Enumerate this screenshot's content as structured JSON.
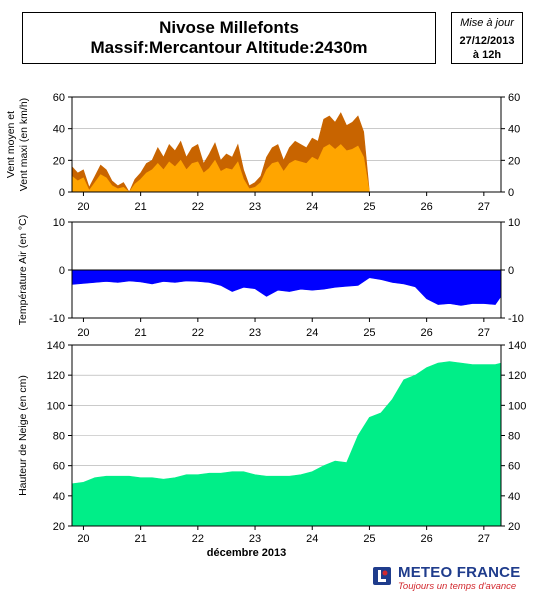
{
  "header": {
    "title_line1": "Nivose Millefonts",
    "title_line2": "Massif:Mercantour Altitude:2430m"
  },
  "update": {
    "label": "Mise à jour",
    "date": "27/12/2013",
    "time": "à 12h"
  },
  "footer": {
    "brand": "METEO FRANCE",
    "tagline": "Toujours un temps d'avance",
    "colors": {
      "brand_blue": "#1f3c8c",
      "brand_red": "#d2282e"
    }
  },
  "chart_data": [
    {
      "type": "area",
      "ylabel": "Vent moyen et Vent maxi (en km/h)",
      "ylim": [
        0,
        60
      ],
      "yticks": [
        0,
        20,
        40,
        60
      ],
      "grid": true,
      "x_ticks": [
        20,
        21,
        22,
        23,
        24,
        25,
        26,
        27
      ],
      "xlim": [
        19.8,
        27.3
      ],
      "series": [
        {
          "role": "max",
          "color": "#c86400",
          "x": [
            19.8,
            19.9,
            20.0,
            20.1,
            20.2,
            20.3,
            20.4,
            20.5,
            20.6,
            20.7,
            20.8,
            20.9,
            21.0,
            21.1,
            21.2,
            21.3,
            21.4,
            21.5,
            21.6,
            21.7,
            21.8,
            21.9,
            22.0,
            22.1,
            22.2,
            22.3,
            22.4,
            22.5,
            22.6,
            22.7,
            22.8,
            22.9,
            23.0,
            23.1,
            23.2,
            23.3,
            23.4,
            23.5,
            23.6,
            23.7,
            23.8,
            23.9,
            24.0,
            24.1,
            24.2,
            24.3,
            24.4,
            24.5,
            24.6,
            24.7,
            24.8,
            24.9,
            25.0
          ],
          "y": [
            16,
            12,
            14,
            3,
            10,
            17,
            14,
            7,
            4,
            6,
            0,
            8,
            12,
            18,
            20,
            28,
            22,
            30,
            26,
            32,
            22,
            28,
            30,
            18,
            24,
            31,
            20,
            24,
            22,
            30,
            14,
            4,
            6,
            10,
            22,
            28,
            30,
            20,
            28,
            32,
            30,
            28,
            34,
            32,
            46,
            48,
            44,
            50,
            42,
            44,
            48,
            38,
            0
          ]
        },
        {
          "role": "mean",
          "color": "#ffa500",
          "x": [
            19.8,
            19.9,
            20.0,
            20.1,
            20.2,
            20.3,
            20.4,
            20.5,
            20.6,
            20.7,
            20.8,
            20.9,
            21.0,
            21.1,
            21.2,
            21.3,
            21.4,
            21.5,
            21.6,
            21.7,
            21.8,
            21.9,
            22.0,
            22.1,
            22.2,
            22.3,
            22.4,
            22.5,
            22.6,
            22.7,
            22.8,
            22.9,
            23.0,
            23.1,
            23.2,
            23.3,
            23.4,
            23.5,
            23.6,
            23.7,
            23.8,
            23.9,
            24.0,
            24.1,
            24.2,
            24.3,
            24.4,
            24.5,
            24.6,
            24.7,
            24.8,
            24.9,
            25.0
          ],
          "y": [
            10,
            7,
            9,
            1,
            6,
            11,
            9,
            4,
            2,
            3,
            0,
            5,
            8,
            12,
            14,
            18,
            14,
            19,
            16,
            20,
            14,
            18,
            19,
            12,
            15,
            20,
            13,
            15,
            14,
            19,
            8,
            2,
            3,
            6,
            14,
            18,
            19,
            13,
            18,
            20,
            19,
            18,
            22,
            20,
            28,
            30,
            27,
            30,
            26,
            27,
            29,
            22,
            0
          ]
        }
      ]
    },
    {
      "type": "area",
      "ylabel": "Température Air (en °C)",
      "ylim": [
        -10,
        10
      ],
      "yticks": [
        -10,
        0,
        10
      ],
      "grid": true,
      "x_ticks": [
        20,
        21,
        22,
        23,
        24,
        25,
        26,
        27
      ],
      "xlim": [
        19.8,
        27.3
      ],
      "series": [
        {
          "role": "temperature",
          "color": "#0000ff",
          "x": [
            19.8,
            20.0,
            20.2,
            20.4,
            20.6,
            20.8,
            21.0,
            21.2,
            21.4,
            21.6,
            21.8,
            22.0,
            22.2,
            22.4,
            22.6,
            22.8,
            23.0,
            23.2,
            23.4,
            23.6,
            23.8,
            24.0,
            24.2,
            24.4,
            24.6,
            24.8,
            25.0,
            25.2,
            25.4,
            25.6,
            25.8,
            26.0,
            26.2,
            26.4,
            26.6,
            26.8,
            27.0,
            27.2,
            27.3
          ],
          "y": [
            -3.0,
            -2.8,
            -2.6,
            -2.4,
            -2.6,
            -2.3,
            -2.5,
            -2.9,
            -2.4,
            -2.6,
            -2.3,
            -2.4,
            -2.6,
            -3.2,
            -4.5,
            -3.6,
            -3.9,
            -5.5,
            -4.2,
            -4.5,
            -4.0,
            -4.2,
            -4.0,
            -3.6,
            -3.4,
            -3.2,
            -1.6,
            -2.0,
            -2.6,
            -2.9,
            -3.5,
            -6.0,
            -7.2,
            -7.0,
            -7.4,
            -7.0,
            -7.0,
            -7.2,
            -5.5
          ]
        }
      ]
    },
    {
      "type": "area",
      "ylabel": "Hauteur de Neige (en cm)",
      "xlabel": "décembre 2013",
      "ylim": [
        20,
        140
      ],
      "yticks": [
        20,
        40,
        60,
        80,
        100,
        120,
        140
      ],
      "grid": true,
      "x_ticks": [
        20,
        21,
        22,
        23,
        24,
        25,
        26,
        27
      ],
      "xlim": [
        19.8,
        27.3
      ],
      "series": [
        {
          "role": "snow_depth",
          "color": "#00ee88",
          "x": [
            19.8,
            20.0,
            20.2,
            20.4,
            20.6,
            20.8,
            21.0,
            21.2,
            21.4,
            21.6,
            21.8,
            22.0,
            22.2,
            22.4,
            22.6,
            22.8,
            23.0,
            23.2,
            23.4,
            23.6,
            23.8,
            24.0,
            24.2,
            24.4,
            24.6,
            24.8,
            25.0,
            25.2,
            25.4,
            25.6,
            25.8,
            26.0,
            26.2,
            26.4,
            26.6,
            26.8,
            27.0,
            27.2,
            27.3
          ],
          "y": [
            48,
            49,
            52,
            53,
            53,
            53,
            52,
            52,
            51,
            52,
            54,
            54,
            55,
            55,
            56,
            56,
            54,
            53,
            53,
            53,
            54,
            56,
            60,
            63,
            62,
            80,
            92,
            95,
            104,
            117,
            120,
            125,
            128,
            129,
            128,
            127,
            127,
            127,
            128
          ]
        }
      ]
    }
  ]
}
